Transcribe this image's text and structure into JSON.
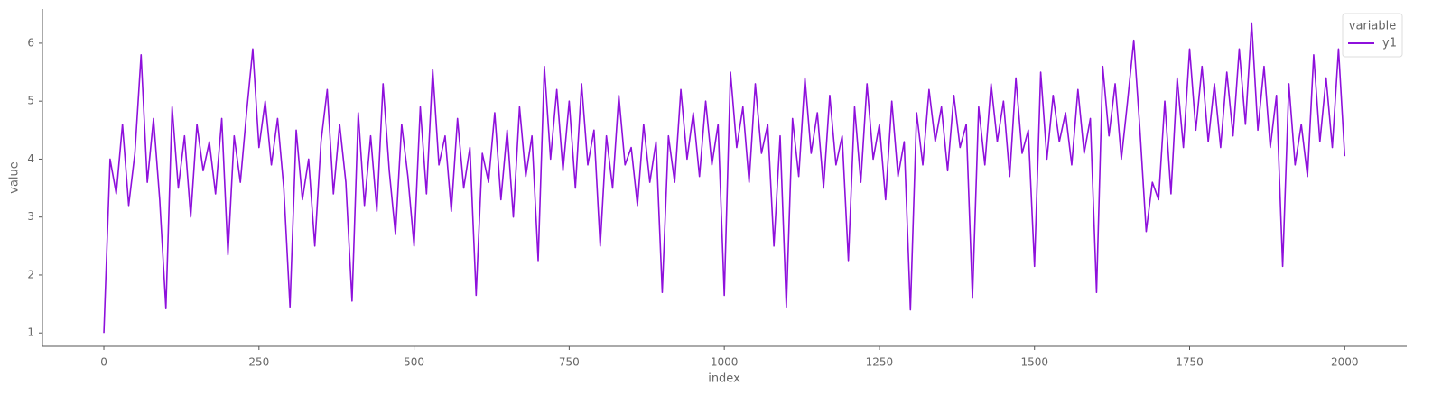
{
  "chart_data": {
    "type": "line",
    "x_label": "index",
    "y_label": "value",
    "legend_title": "variable",
    "legend": "upper right",
    "xlim": [
      -99,
      2100
    ],
    "ylim": [
      0.77,
      6.59
    ],
    "xticks": [
      0,
      250,
      500,
      750,
      1000,
      1250,
      1500,
      1750,
      2000
    ],
    "yticks": [
      1,
      2,
      3,
      4,
      5,
      6
    ],
    "x": [
      0,
      10,
      20,
      30,
      40,
      50,
      60,
      70,
      80,
      90,
      100,
      110,
      120,
      130,
      140,
      150,
      160,
      170,
      180,
      190,
      200,
      210,
      220,
      230,
      240,
      250,
      260,
      270,
      280,
      290,
      300,
      310,
      320,
      330,
      340,
      350,
      360,
      370,
      380,
      390,
      400,
      410,
      420,
      430,
      440,
      450,
      460,
      470,
      480,
      490,
      500,
      510,
      520,
      530,
      540,
      550,
      560,
      570,
      580,
      590,
      600,
      610,
      620,
      630,
      640,
      650,
      660,
      670,
      680,
      690,
      700,
      710,
      720,
      730,
      740,
      750,
      760,
      770,
      780,
      790,
      800,
      810,
      820,
      830,
      840,
      850,
      860,
      870,
      880,
      890,
      900,
      910,
      920,
      930,
      940,
      950,
      960,
      970,
      980,
      990,
      1000,
      1010,
      1020,
      1030,
      1040,
      1050,
      1060,
      1070,
      1080,
      1090,
      1100,
      1110,
      1120,
      1130,
      1140,
      1150,
      1160,
      1170,
      1180,
      1190,
      1200,
      1210,
      1220,
      1230,
      1240,
      1250,
      1260,
      1270,
      1280,
      1290,
      1300,
      1310,
      1320,
      1330,
      1340,
      1350,
      1360,
      1370,
      1380,
      1390,
      1400,
      1410,
      1420,
      1430,
      1440,
      1450,
      1460,
      1470,
      1480,
      1490,
      1500,
      1510,
      1520,
      1530,
      1540,
      1550,
      1560,
      1570,
      1580,
      1590,
      1600,
      1610,
      1620,
      1630,
      1640,
      1650,
      1660,
      1670,
      1680,
      1690,
      1700,
      1710,
      1720,
      1730,
      1740,
      1750,
      1760,
      1770,
      1780,
      1790,
      1800,
      1810,
      1820,
      1830,
      1840,
      1850,
      1860,
      1870,
      1880,
      1890,
      1900,
      1910,
      1920,
      1930,
      1940,
      1950,
      1960,
      1970,
      1980,
      1990,
      2000
    ],
    "series": [
      {
        "name": "y1",
        "color": "#8e10dc",
        "values": [
          1.0,
          4.0,
          3.4,
          4.6,
          3.2,
          4.1,
          5.8,
          3.6,
          4.7,
          3.3,
          1.42,
          4.9,
          3.5,
          4.4,
          3.0,
          4.6,
          3.8,
          4.3,
          3.4,
          4.7,
          2.35,
          4.4,
          3.6,
          4.8,
          5.9,
          4.2,
          5.0,
          3.9,
          4.7,
          3.5,
          1.45,
          4.5,
          3.3,
          4.0,
          2.5,
          4.3,
          5.2,
          3.4,
          4.6,
          3.6,
          1.55,
          4.8,
          3.2,
          4.4,
          3.1,
          5.3,
          3.8,
          2.7,
          4.6,
          3.7,
          2.5,
          4.9,
          3.4,
          5.55,
          3.9,
          4.4,
          3.1,
          4.7,
          3.5,
          4.2,
          1.65,
          4.1,
          3.6,
          4.8,
          3.3,
          4.5,
          3.0,
          4.9,
          3.7,
          4.4,
          2.25,
          5.6,
          4.0,
          5.2,
          3.8,
          5.0,
          3.5,
          5.3,
          3.9,
          4.5,
          2.5,
          4.4,
          3.5,
          5.1,
          3.9,
          4.2,
          3.2,
          4.6,
          3.6,
          4.3,
          1.7,
          4.4,
          3.6,
          5.2,
          4.0,
          4.8,
          3.7,
          5.0,
          3.9,
          4.6,
          1.65,
          5.5,
          4.2,
          4.9,
          3.6,
          5.3,
          4.1,
          4.6,
          2.5,
          4.4,
          1.45,
          4.7,
          3.7,
          5.4,
          4.1,
          4.8,
          3.5,
          5.1,
          3.9,
          4.4,
          2.25,
          4.9,
          3.6,
          5.3,
          4.0,
          4.6,
          3.3,
          5.0,
          3.7,
          4.3,
          1.4,
          4.8,
          3.9,
          5.2,
          4.3,
          4.9,
          3.8,
          5.1,
          4.2,
          4.6,
          1.6,
          4.9,
          3.9,
          5.3,
          4.3,
          5.0,
          3.7,
          5.4,
          4.1,
          4.5,
          2.15,
          5.5,
          4.0,
          5.1,
          4.3,
          4.8,
          3.9,
          5.2,
          4.1,
          4.7,
          1.7,
          5.6,
          4.4,
          5.3,
          4.0,
          5.0,
          6.05,
          4.5,
          2.75,
          3.6,
          3.3,
          5.0,
          3.4,
          5.4,
          4.2,
          5.9,
          4.5,
          5.6,
          4.3,
          5.3,
          4.2,
          5.5,
          4.4,
          5.9,
          4.6,
          6.35,
          4.5,
          5.6,
          4.2,
          5.1,
          2.15,
          5.3,
          3.9,
          4.6,
          3.7,
          5.8,
          4.3,
          5.4,
          4.2,
          5.9,
          4.05
        ]
      }
    ]
  }
}
